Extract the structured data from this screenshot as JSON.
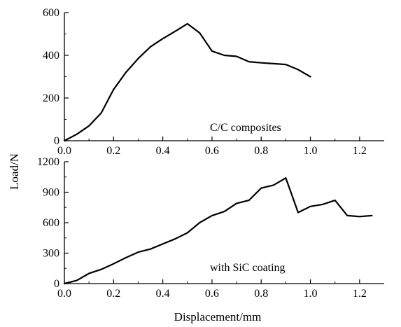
{
  "figure": {
    "ylabel": "Load/N",
    "xlabel": "Displacement/mm"
  },
  "chart_data": [
    {
      "type": "line",
      "annotation": "C/C composites",
      "xlim": [
        0,
        1.3
      ],
      "ylim": [
        0,
        600
      ],
      "xticks": [
        0.0,
        0.2,
        0.4,
        0.6,
        0.8,
        1.0,
        1.2
      ],
      "xtick_labels": [
        "0.0",
        "0.2",
        "0.4",
        "0.6",
        "0.8",
        "1.0",
        "1.2"
      ],
      "yticks": [
        0,
        200,
        400,
        600
      ],
      "ytick_labels": [
        "0",
        "200",
        "400",
        "600"
      ],
      "grid": false,
      "series": [
        {
          "x": [
            0.0,
            0.05,
            0.1,
            0.15,
            0.2,
            0.25,
            0.3,
            0.35,
            0.4,
            0.45,
            0.5,
            0.55,
            0.6,
            0.65,
            0.7,
            0.75,
            0.8,
            0.85,
            0.9,
            0.95,
            1.0
          ],
          "y": [
            0,
            30,
            70,
            130,
            240,
            320,
            385,
            440,
            478,
            512,
            548,
            505,
            420,
            400,
            395,
            370,
            365,
            361,
            357,
            333,
            300
          ]
        }
      ]
    },
    {
      "type": "line",
      "annotation": "with SiC coating",
      "xlim": [
        0,
        1.3
      ],
      "ylim": [
        0,
        1200
      ],
      "xticks": [
        0.0,
        0.2,
        0.4,
        0.6,
        0.8,
        1.0,
        1.2
      ],
      "xtick_labels": [
        "0.0",
        "0.2",
        "0.4",
        "0.6",
        "0.8",
        "1.0",
        "1.2"
      ],
      "yticks": [
        0,
        300,
        600,
        900,
        1200
      ],
      "ytick_labels": [
        "0",
        "300",
        "600",
        "900",
        "1200"
      ],
      "grid": false,
      "series": [
        {
          "x": [
            0.0,
            0.05,
            0.1,
            0.15,
            0.2,
            0.25,
            0.3,
            0.35,
            0.4,
            0.45,
            0.5,
            0.55,
            0.6,
            0.65,
            0.7,
            0.75,
            0.8,
            0.85,
            0.9,
            0.95,
            1.0,
            1.05,
            1.1,
            1.15,
            1.2,
            1.25
          ],
          "y": [
            0,
            30,
            100,
            140,
            195,
            255,
            310,
            340,
            390,
            440,
            500,
            600,
            670,
            710,
            790,
            820,
            940,
            970,
            1040,
            700,
            760,
            780,
            820,
            670,
            660,
            670
          ]
        }
      ]
    }
  ]
}
